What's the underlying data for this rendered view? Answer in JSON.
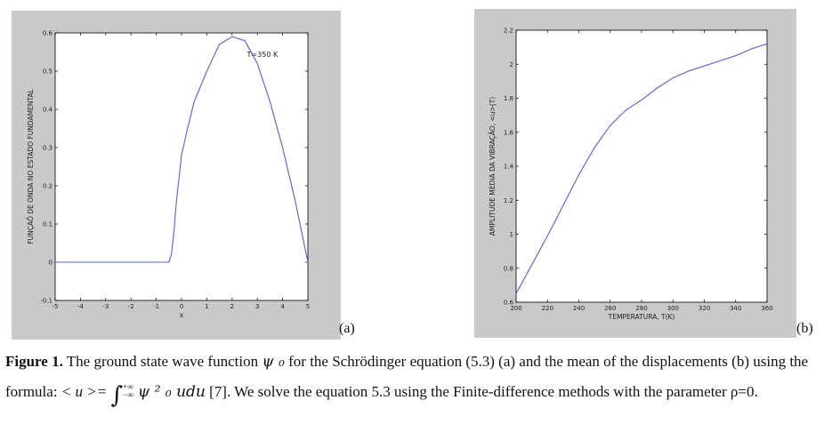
{
  "chart_data": [
    {
      "type": "line",
      "panel": "(a)",
      "title": "",
      "xlabel": "x",
      "ylabel": "FUNÇAÕ DE ONDA NO ESTADO FUNDAMENTAL",
      "xlim": [
        -5,
        5
      ],
      "ylim": [
        -0.1,
        0.6
      ],
      "xticks": [
        "-5",
        "-4",
        "-3",
        "-2",
        "-1",
        "0",
        "1",
        "2",
        "3",
        "4",
        "5"
      ],
      "yticks": [
        "-0.1",
        "0",
        "0.1",
        "0.2",
        "0.3",
        "0.4",
        "0.5",
        "0.6"
      ],
      "annotation": "T=350 K",
      "line_color": "#5b5bd6",
      "grid": false,
      "x": [
        -5,
        -0.5,
        -0.4,
        -0.3,
        -0.2,
        0,
        0.2,
        0.5,
        1,
        1.5,
        2,
        2.5,
        3,
        3.5,
        4,
        4.5,
        5
      ],
      "y": [
        0,
        0,
        0.02,
        0.08,
        0.16,
        0.28,
        0.34,
        0.42,
        0.5,
        0.57,
        0.59,
        0.58,
        0.52,
        0.42,
        0.3,
        0.16,
        0
      ]
    },
    {
      "type": "line",
      "panel": "(b)",
      "title": "",
      "xlabel": "TEMPERATURA, T(K)",
      "ylabel": "AMPLITUDE MEDIA DA VIBRAÇÃO, <u>(T)",
      "xlim": [
        200,
        360
      ],
      "ylim": [
        0.6,
        2.2
      ],
      "xticks": [
        "200",
        "220",
        "240",
        "260",
        "280",
        "300",
        "320",
        "340",
        "360"
      ],
      "yticks": [
        "0.6",
        "0.8",
        "1",
        "1.2",
        "1.4",
        "1.6",
        "1.8",
        "2",
        "2.2"
      ],
      "line_color": "#5b5bd6",
      "grid": false,
      "x": [
        200,
        210,
        220,
        230,
        240,
        250,
        260,
        270,
        280,
        290,
        300,
        310,
        320,
        330,
        340,
        350,
        360
      ],
      "y": [
        0.65,
        0.82,
        0.99,
        1.17,
        1.35,
        1.51,
        1.64,
        1.73,
        1.79,
        1.86,
        1.92,
        1.96,
        1.99,
        2.02,
        2.05,
        2.09,
        2.12
      ]
    }
  ],
  "panel_labels": {
    "a": "(a)",
    "b": "(b)"
  },
  "caption": {
    "label": "Figure 1.",
    "text1": " The ground state wave function ",
    "psi0": "ψ ₀",
    "text2": "  for the Schrödinger equation (5.3) (a) and the mean of the displacements (b) using the formula: ",
    "lhs": " < u >= ",
    "integral": "∫",
    "upper": "+∞",
    "lower": "−∞",
    "integrand": " ψ ² ₀ udu",
    "text3": "  [7]. We solve the equation 5.3 using the Finite-difference methods with the parameter ρ=0."
  }
}
